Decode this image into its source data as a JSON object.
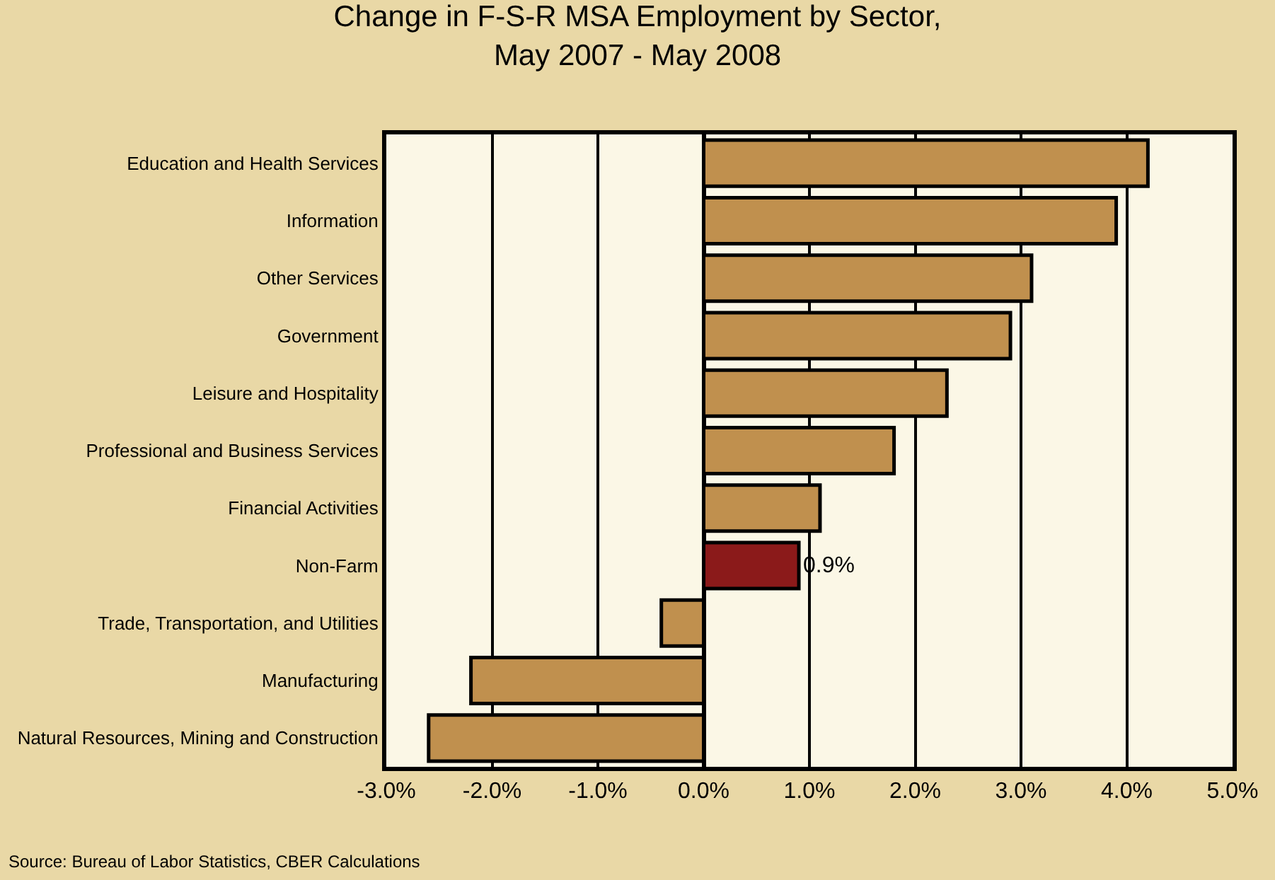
{
  "chart_data": {
    "type": "bar",
    "orientation": "horizontal",
    "title": "Change in F-S-R MSA Employment by Sector,\nMay 2007 - May 2008",
    "categories": [
      "Education and Health Services",
      "Information",
      "Other Services",
      "Government",
      "Leisure and Hospitality",
      "Professional and Business Services",
      "Financial Activities",
      "Non-Farm",
      "Trade, Transportation, and Utilities",
      "Manufacturing",
      "Natural Resources, Mining and Construction"
    ],
    "values": [
      4.2,
      3.9,
      3.1,
      2.9,
      2.3,
      1.8,
      1.1,
      0.9,
      -0.4,
      -2.2,
      -2.6
    ],
    "colors": [
      "#c0904e",
      "#c0904e",
      "#c0904e",
      "#c0904e",
      "#c0904e",
      "#c0904e",
      "#c0904e",
      "#8b1a1a",
      "#c0904e",
      "#c0904e",
      "#c0904e"
    ],
    "value_labels": [
      null,
      null,
      null,
      null,
      null,
      null,
      null,
      "0.9%",
      null,
      null,
      null
    ],
    "xlim": [
      -3,
      5
    ],
    "xticks": [
      {
        "value": -3,
        "label": "-3.0%"
      },
      {
        "value": -2,
        "label": "-2.0%"
      },
      {
        "value": -1,
        "label": "-1.0%"
      },
      {
        "value": 0,
        "label": "0.0%"
      },
      {
        "value": 1,
        "label": "1.0%"
      },
      {
        "value": 2,
        "label": "2.0%"
      },
      {
        "value": 3,
        "label": "3.0%"
      },
      {
        "value": 4,
        "label": "4.0%"
      },
      {
        "value": 5,
        "label": "5.0%"
      }
    ],
    "grid": "x",
    "annotations": [
      "Source: Bureau of Labor Statistics, CBER Calculations"
    ]
  }
}
